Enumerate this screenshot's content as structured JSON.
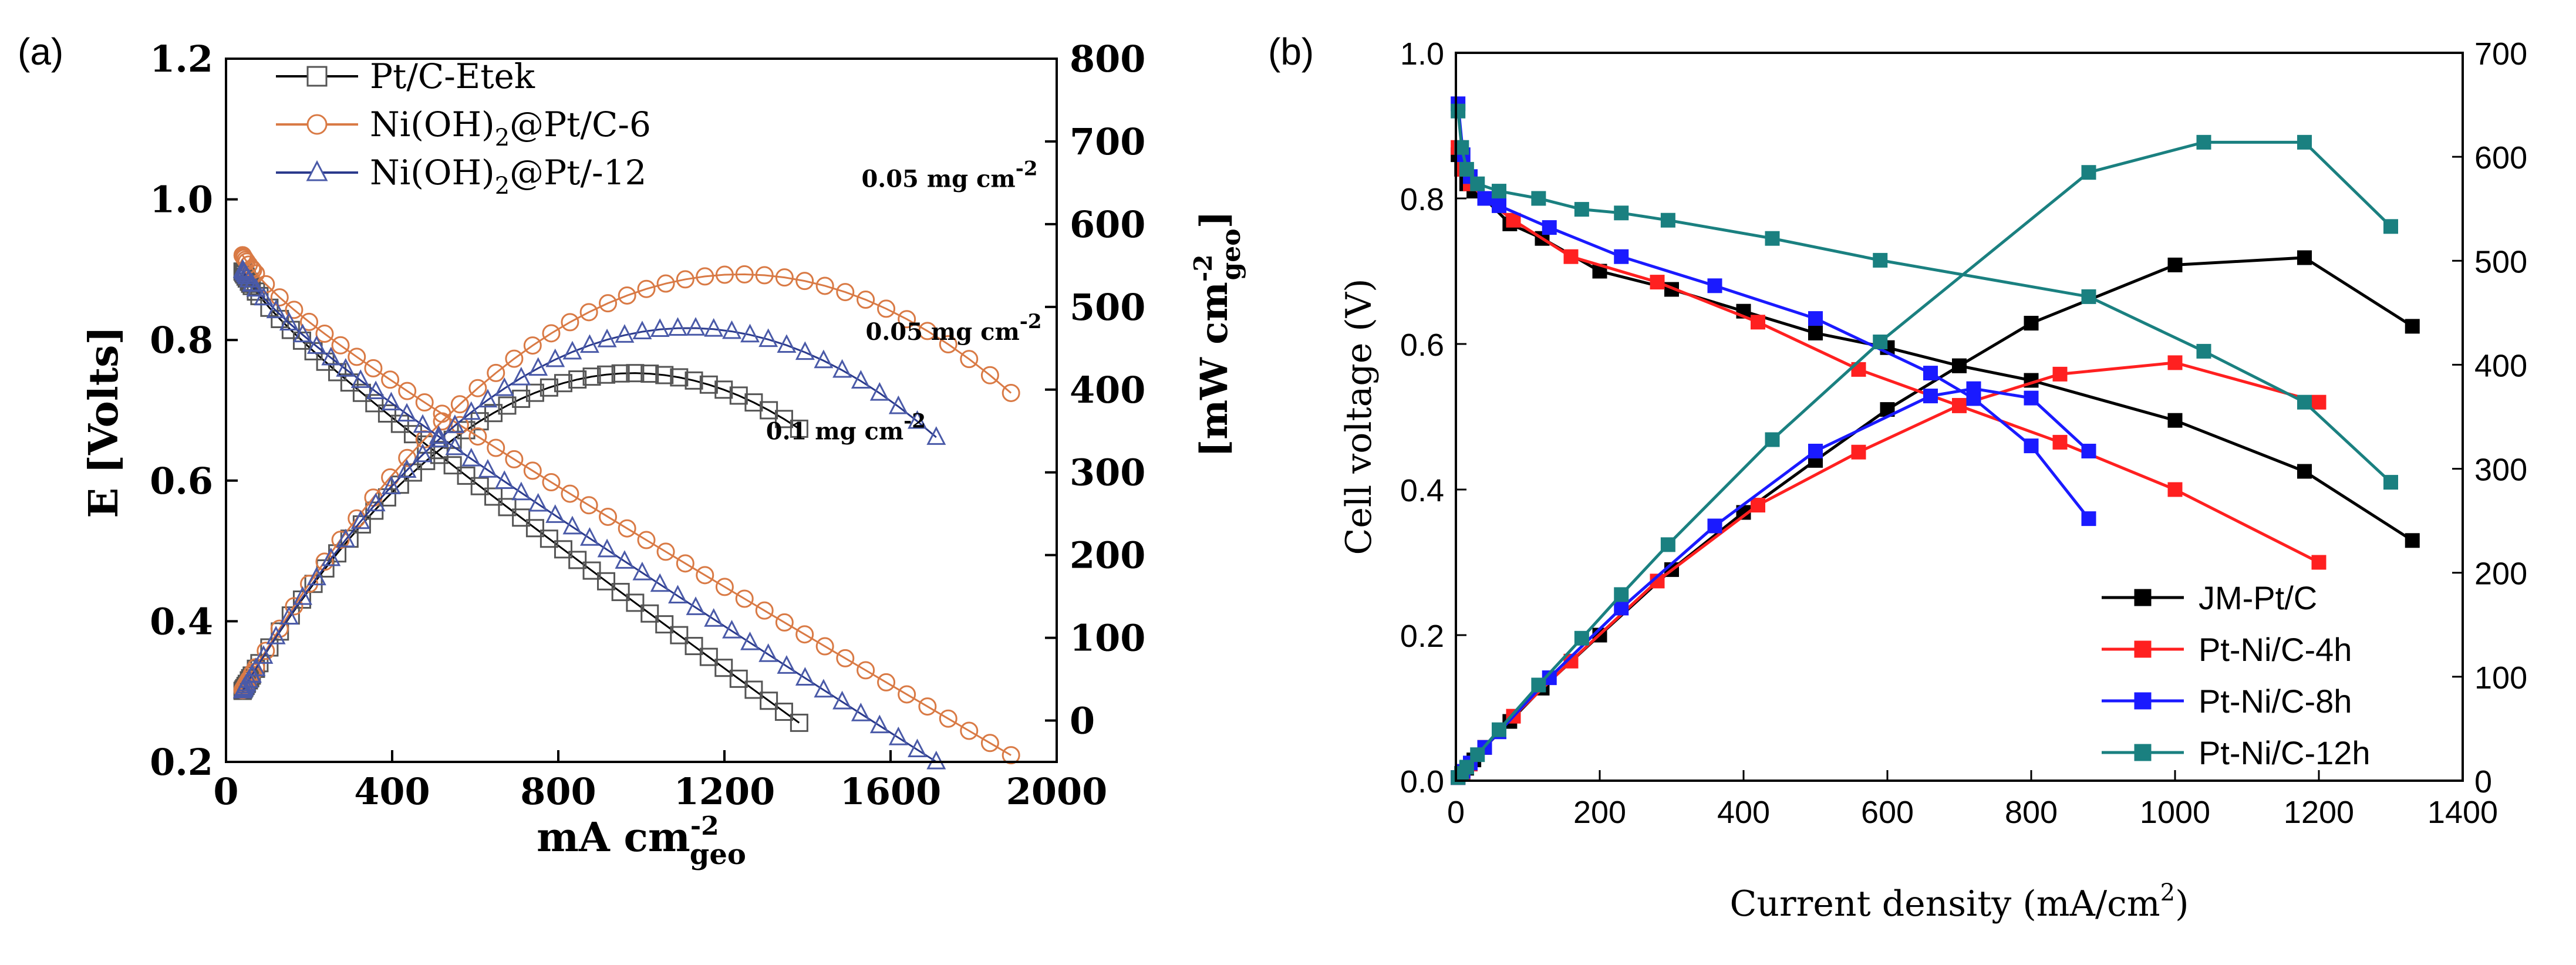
{
  "chart_data": [
    {
      "panel_label": "(a)",
      "type": "line",
      "xlabel": "mA cm",
      "xlabel_sup": "-2",
      "xlabel_sub": "geo",
      "ylabel": "E [Volts]",
      "y2label": "[mW cm",
      "y2label_sup": "-2",
      "y2label_sub": "geo",
      "y2label_end": "]",
      "xlim": [
        0,
        2000
      ],
      "ylim": [
        0.2,
        1.2
      ],
      "y2lim": [
        -50,
        800
      ],
      "xticks": [
        0,
        400,
        800,
        1200,
        1600,
        2000
      ],
      "yticks": [
        0.2,
        0.4,
        0.6,
        0.8,
        1.0,
        1.2
      ],
      "y2ticks": [
        0,
        100,
        200,
        300,
        400,
        500,
        600,
        700,
        800
      ],
      "tick_format": {
        "y": 1
      },
      "legend": "top-left",
      "series": [
        {
          "name": "Pt/C-Etek",
          "label_main": "Pt/C-Etek",
          "label_sub": "",
          "label_tail": "",
          "marker": "square",
          "color": "#000000",
          "marker_color": "#555555",
          "x_max": 1380,
          "pol": {
            "E0": 0.915,
            "a": 0.06,
            "b": 0.00041
          },
          "pow": {
            "end": 0.35
          }
        },
        {
          "name": "Ni(OH)2@Pt/C-6",
          "label_main": "Ni(OH)",
          "label_sub": "2",
          "label_tail": "@Pt/C-6",
          "marker": "circle",
          "color": "#d97a45",
          "marker_color": "#d97a45",
          "x_max": 1890,
          "pol": {
            "E0": 0.935,
            "a": 0.06,
            "b": 0.00033
          },
          "pow": {
            "end": 0.305
          }
        },
        {
          "name": "Ni(OH)2@Pt/-12",
          "label_main": "Ni(OH)",
          "label_sub": "2",
          "label_tail": "@Pt/-12",
          "marker": "triangle",
          "color": "#2b3a8c",
          "marker_color": "#4a5aa8",
          "x_max": 1710,
          "pol": {
            "E0": 0.915,
            "a": 0.06,
            "b": 0.00036
          },
          "pow": {
            "end": 0.31
          }
        }
      ],
      "annotations": [
        {
          "text": "0.05 mg cm",
          "sup": "-2",
          "x": 1530,
          "y2": 645
        },
        {
          "text": "0.05 mg cm",
          "sup": "-2",
          "x": 1540,
          "y2": 460
        },
        {
          "text": "0.1 mg cm",
          "sup": "-2",
          "x": 1300,
          "y2": 340
        }
      ]
    },
    {
      "panel_label": "(b)",
      "type": "line",
      "xlabel": "Current density (mA/cm",
      "xlabel_sup": "2",
      "xlabel_end": ")",
      "ylabel": "Cell voltage (V)",
      "xlim": [
        0,
        1400
      ],
      "ylim": [
        0.0,
        1.0
      ],
      "y2lim": [
        0,
        700
      ],
      "xticks": [
        0,
        200,
        400,
        600,
        800,
        1000,
        1200,
        1400
      ],
      "yticks": [
        0.0,
        0.2,
        0.4,
        0.6,
        0.8,
        1.0
      ],
      "y2ticks": [
        0,
        100,
        200,
        300,
        400,
        500,
        600,
        700
      ],
      "tick_format": {
        "y": 1
      },
      "legend": "bottom-right",
      "series": [
        {
          "name": "JM-Pt/C",
          "color": "#000000",
          "voltage": {
            "x": [
              3,
              8,
              15,
              25,
              40,
              75,
              120,
              200,
              300,
              400,
              500,
              600,
              700,
              800,
              1000,
              1180,
              1330
            ],
            "y": [
              0.86,
              0.84,
              0.82,
              0.81,
              0.8,
              0.765,
              0.745,
              0.7,
              0.675,
              0.645,
              0.615,
              0.595,
              0.57,
              0.55,
              0.495,
              0.425,
              0.33
            ]
          },
          "power": {
            "x": [
              3,
              8,
              15,
              25,
              40,
              75,
              120,
              200,
              300,
              400,
              500,
              600,
              700,
              800,
              1000,
              1180,
              1330
            ],
            "y": [
              3,
              7,
              12,
              20,
              32,
              57,
              89,
              140,
              203,
              258,
              308,
              357,
              399,
              440,
              496,
              503,
              437
            ]
          }
        },
        {
          "name": "Pt-Ni/C-4h",
          "color": "#ff2020",
          "voltage": {
            "x": [
              3,
              10,
              20,
              40,
              80,
              160,
              280,
              420,
              560,
              700,
              840,
              1000,
              1200
            ],
            "y": [
              0.87,
              0.84,
              0.82,
              0.8,
              0.77,
              0.72,
              0.685,
              0.63,
              0.565,
              0.515,
              0.465,
              0.4,
              0.3
            ]
          },
          "power": {
            "x": [
              3,
              10,
              20,
              40,
              80,
              160,
              280,
              420,
              560,
              700,
              840,
              1000,
              1200
            ],
            "y": [
              3,
              8,
              16,
              32,
              62,
              115,
              192,
              265,
              316,
              361,
              391,
              402,
              364
            ]
          }
        },
        {
          "name": "Pt-Ni/C-8h",
          "color": "#1a1aff",
          "voltage": {
            "x": [
              3,
              10,
              20,
              40,
              60,
              130,
              230,
              360,
              500,
              660,
              720,
              800,
              880
            ],
            "y": [
              0.93,
              0.86,
              0.83,
              0.8,
              0.79,
              0.76,
              0.72,
              0.68,
              0.635,
              0.56,
              0.525,
              0.46,
              0.36
            ]
          },
          "power": {
            "x": [
              3,
              10,
              20,
              40,
              60,
              130,
              230,
              360,
              500,
              660,
              720,
              800,
              880
            ],
            "y": [
              3,
              9,
              17,
              32,
              47,
              99,
              166,
              245,
              317,
              370,
              377,
              368,
              317
            ]
          }
        },
        {
          "name": "Pt-Ni/C-12h",
          "color": "#1a8080",
          "voltage": {
            "x": [
              3,
              8,
              15,
              30,
              60,
              115,
              175,
              230,
              295,
              440,
              590,
              880,
              1040,
              1180,
              1300
            ],
            "y": [
              0.92,
              0.87,
              0.84,
              0.82,
              0.81,
              0.8,
              0.785,
              0.78,
              0.77,
              0.745,
              0.715,
              0.665,
              0.59,
              0.52,
              0.41
            ]
          },
          "power": {
            "x": [
              3,
              8,
              15,
              30,
              60,
              115,
              175,
              230,
              295,
              440,
              590,
              880,
              1040,
              1180,
              1300
            ],
            "y": [
              3,
              7,
              13,
              25,
              49,
              92,
              137,
              179,
              227,
              328,
              422,
              585,
              614,
              614,
              533
            ]
          }
        }
      ]
    }
  ]
}
